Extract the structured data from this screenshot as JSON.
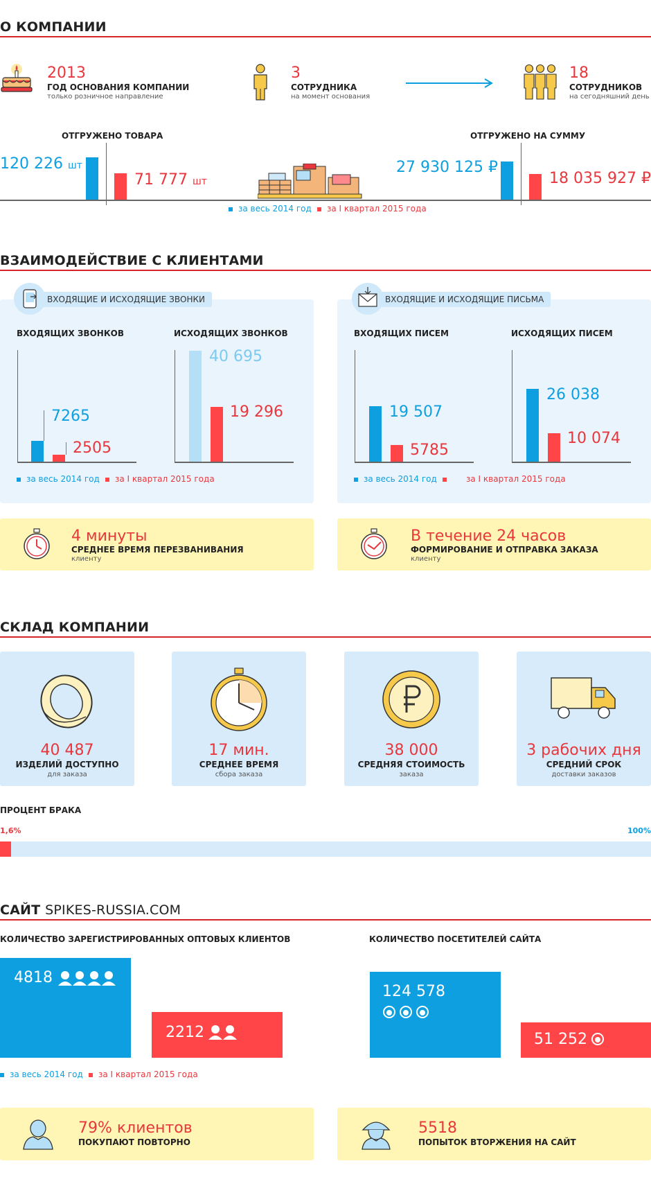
{
  "company": {
    "title": "О КОМПАНИИ",
    "founded": {
      "year": "2013",
      "label": "ГОД ОСНОВАНИЯ КОМПАНИИ",
      "sub": "только розничное направление"
    },
    "start_staff": {
      "count": "3",
      "label": "СОТРУДНИКА",
      "sub": "на момент основания"
    },
    "now_staff": {
      "count": "18",
      "label": "СОТРУДНИКОВ",
      "sub": "на сегодняшний день"
    },
    "shipped_goods": {
      "title": "ОТГРУЖЕНО ТОВАРА",
      "v2014": "120 226",
      "v2014_unit": "шт",
      "v2015": "71 777",
      "v2015_unit": "шт"
    },
    "shipped_sum": {
      "title": "ОТГРУЖЕНО НА СУММУ",
      "v2014": "27 930 125 ₽",
      "v2015": "18 035 927 ₽"
    },
    "legend": {
      "y2014": "за весь 2014 год",
      "q2015": "за I квартал 2015 года"
    }
  },
  "clients": {
    "title": "ВЗАИМОДЕЙСТВИЕ С КЛИЕНТАМИ",
    "calls": {
      "tag": "ВХОДЯЩИЕ И ИСХОДЯЩИЕ ЗВОНКИ",
      "in_title": "ВХОДЯЩИХ ЗВОНКОВ",
      "out_title": "ИСХОДЯЩИХ ЗВОНКОВ",
      "in_2014": "7265",
      "in_2015": "2505",
      "out_2014": "40 695",
      "out_2015": "19 296"
    },
    "letters": {
      "tag": "ВХОДЯЩИЕ И ИСХОДЯЩИЕ ПИСЬМА",
      "in_title": "ВХОДЯЩИХ ПИСЕМ",
      "out_title": "ИСХОДЯЩИХ ПИСЕМ",
      "in_2014": "19 507",
      "in_2015": "5785",
      "out_2014": "26 038",
      "out_2015": "10 074"
    },
    "legend": {
      "y2014": "за весь 2014 год",
      "q2015": "за I квартал 2015 года"
    },
    "callback": {
      "value": "4 минуты",
      "label": "СРЕДНЕЕ ВРЕМЯ ПЕРЕЗВАНИВАНИЯ",
      "sub": "клиенту"
    },
    "order": {
      "value": "В течение 24 часов",
      "label": "ФОРМИРОВАНИЕ И ОТПРАВКА ЗАКАЗА",
      "sub": "клиенту"
    }
  },
  "warehouse": {
    "title": "СКЛАД КОМПАНИИ",
    "tiles": [
      {
        "value": "40 487",
        "label": "ИЗДЕЛИЙ ДОСТУПНО",
        "sub": "для заказа"
      },
      {
        "value": "17 мин.",
        "label": "СРЕДНЕЕ ВРЕМЯ",
        "sub": "сбора заказа"
      },
      {
        "value": "38 000",
        "label": "СРЕДНЯЯ СТОИМОСТЬ",
        "sub": "заказа"
      },
      {
        "value": "3 рабочих дня",
        "label": "СРЕДНИЙ СРОК",
        "sub": "доставки заказов"
      }
    ],
    "defect": {
      "title": "ПРОЦЕНТ БРАКА",
      "value": "1,6%",
      "max": "100%",
      "fraction": 0.016
    }
  },
  "site": {
    "title_bold": "САЙТ",
    "title_rest": "SPIKES-RUSSIA.COM",
    "clients_title": "КОЛИЧЕСТВО ЗАРЕГИСТРИРОВАННЫХ ОПТОВЫХ КЛИЕНТОВ",
    "visitors_title": "КОЛИЧЕСТВО ПОСЕТИТЕЛЕЙ САЙТА",
    "clients_2014": "4818",
    "clients_2015": "2212",
    "visitors_2014": "124 578",
    "visitors_2015": "51 252",
    "legend": {
      "y2014": "за весь 2014 год",
      "q2015": "за I квартал 2015 года"
    },
    "repeat": {
      "value": "79% клиентов",
      "label": "ПОКУПАЮТ ПОВТОРНО"
    },
    "intrusions": {
      "value": "5518",
      "label": "ПОПЫТОК ВТОРЖЕНИЯ НА САЙТ"
    }
  },
  "colors": {
    "red": "#e8373d",
    "blue": "#0d9fe0",
    "light_blue": "#b4dff6",
    "panel": "#eaf4fc",
    "yellow": "#fff6b5"
  }
}
